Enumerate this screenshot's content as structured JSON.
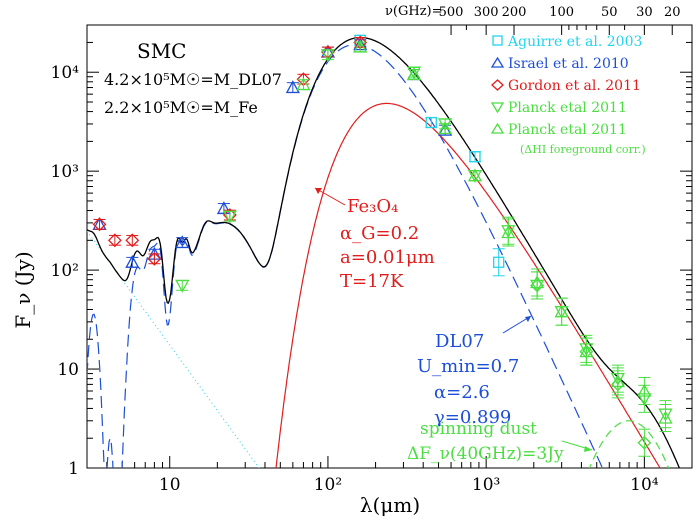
{
  "chart_data": {
    "type": "scatter",
    "xlog": true,
    "ylog": true,
    "xlim": [
      3.0,
      20000
    ],
    "ylim": [
      1,
      30000
    ],
    "xlabel": "λ(μm)",
    "ylabel": "F_ν (Jy)",
    "x_ticks": [
      {
        "v": 10,
        "label": "10"
      },
      {
        "v": 100,
        "label": "10²"
      },
      {
        "v": 1000,
        "label": "10³"
      },
      {
        "v": 10000,
        "label": "10⁴"
      }
    ],
    "y_ticks": [
      {
        "v": 1,
        "label": "1"
      },
      {
        "v": 10,
        "label": "10"
      },
      {
        "v": 100,
        "label": "10²"
      },
      {
        "v": 1000,
        "label": "10³"
      },
      {
        "v": 10000,
        "label": "10⁴"
      }
    ],
    "top_axis": {
      "label": "ν(GHz)=",
      "ticks": [
        {
          "v": 500,
          "label": "500"
        },
        {
          "v": 300,
          "label": "300"
        },
        {
          "v": 200,
          "label": "200"
        },
        {
          "v": 100,
          "label": "100"
        },
        {
          "v": 50,
          "label": "50"
        },
        {
          "v": 30,
          "label": "30"
        },
        {
          "v": 20,
          "label": "20"
        }
      ]
    },
    "title_block": {
      "galaxy": "SMC",
      "mass_dl07": "4.2×10⁵M☉=M_DL07",
      "mass_fe": "2.2×10⁵M☉=M_Fe"
    },
    "legend": [
      {
        "label": "Aguirre et al. 2003",
        "color": "#22d3ee",
        "marker": "square"
      },
      {
        "label": "Israel et al. 2010",
        "color": "#1d4ed8",
        "marker": "triangle-up"
      },
      {
        "label": "Gordon et al. 2011",
        "color": "#e11d1d",
        "marker": "diamond"
      },
      {
        "label": "Planck etal 2011",
        "color": "#4ade40",
        "marker": "triangle-down"
      },
      {
        "label": "Planck etal 2011",
        "color": "#4ade40",
        "marker": "triangle-up"
      },
      {
        "label": "(ΔHI foreground corr.)",
        "color": "#4ade40",
        "marker": "none"
      }
    ],
    "annotations": {
      "fe": [
        "Fe₃O₄",
        "α_G=0.2",
        "a=0.01μm",
        "T=17K"
      ],
      "dl07": [
        "DL07",
        "U_min=0.7",
        "α=2.6",
        "γ=0.899"
      ],
      "spinning": [
        "spinning dust",
        "ΔF_ν(40GHz)=3Jy"
      ]
    },
    "colors": {
      "total": "#000000",
      "dl07": "#1d4ed8",
      "fe": "#e11d1d",
      "spinning": "#4ade40",
      "stellar": "#22d3ee",
      "aguirre": "#22d3ee",
      "israel": "#1d4ed8",
      "gordon": "#e11d1d",
      "planck": "#4ade40"
    },
    "series": [
      {
        "name": "Aguirre et al. 2003",
        "marker": "square",
        "color": "#22d3ee",
        "points": [
          [
            160,
            21000
          ],
          [
            450,
            3100
          ],
          [
            850,
            1400
          ],
          [
            1200,
            120
          ]
        ]
      },
      {
        "name": "Israel et al. 2010",
        "marker": "triangle-up",
        "color": "#1d4ed8",
        "points": [
          [
            3.6,
            290
          ],
          [
            5.8,
            120
          ],
          [
            8,
            145
          ],
          [
            12,
            190
          ],
          [
            22,
            420
          ],
          [
            60,
            7000
          ],
          [
            100,
            16000
          ],
          [
            160,
            19000
          ],
          [
            350,
            9500
          ],
          [
            550,
            2600
          ]
        ]
      },
      {
        "name": "Gordon et al. 2011",
        "marker": "diamond",
        "color": "#e11d1d",
        "points": [
          [
            3.6,
            290
          ],
          [
            4.5,
            200
          ],
          [
            5.8,
            200
          ],
          [
            8,
            130
          ],
          [
            24,
            360
          ],
          [
            70,
            8500
          ],
          [
            100,
            16000
          ],
          [
            160,
            20000
          ]
        ]
      },
      {
        "name": "Planck etal 2011",
        "marker": "triangle-down",
        "color": "#4ade40",
        "points": [
          [
            12,
            70
          ],
          [
            24,
            350
          ],
          [
            100,
            15000
          ],
          [
            350,
            10000
          ],
          [
            550,
            3000
          ],
          [
            850,
            900
          ],
          [
            1380,
            250
          ],
          [
            2100,
            70
          ],
          [
            3000,
            38
          ],
          [
            4300,
            16
          ],
          [
            6800,
            8
          ],
          [
            10000,
            5
          ],
          [
            13600,
            3.5
          ]
        ]
      },
      {
        "name": "Planck etal 2011",
        "marker": "triangle-up",
        "color": "#4ade40",
        "points": [
          [
            70,
            7500
          ],
          [
            160,
            18000
          ],
          [
            350,
            9500
          ],
          [
            550,
            2700
          ],
          [
            850,
            900
          ],
          [
            1380,
            240
          ],
          [
            2100,
            75
          ],
          [
            3000,
            38
          ],
          [
            4300,
            15
          ],
          [
            6800,
            7.5
          ],
          [
            10000,
            6
          ],
          [
            13600,
            3.2
          ]
        ]
      },
      {
        "name": "",
        "marker": "diamond",
        "color": "#4ade40",
        "points": [
          [
            2100,
            70
          ],
          [
            4300,
            15
          ],
          [
            6800,
            7
          ],
          [
            10000,
            1.8
          ]
        ]
      }
    ]
  }
}
